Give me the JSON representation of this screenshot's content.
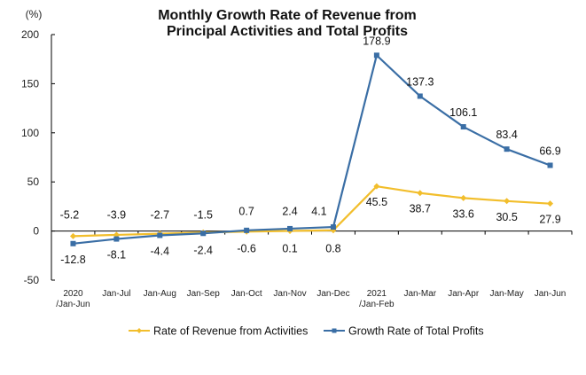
{
  "chart_data": {
    "type": "line",
    "title": [
      "Monthly Growth Rate of Revenue from",
      "Principal Activities  and Total Profits"
    ],
    "ylabel": "(%)",
    "xlabel": "",
    "ylim": [
      -50,
      200
    ],
    "yticks": [
      -50,
      0,
      50,
      100,
      150,
      200
    ],
    "grid": false,
    "legend_position": "bottom",
    "categories": [
      [
        "2020",
        "/Jan-Jun"
      ],
      [
        "Jan-Jul"
      ],
      [
        "Jan-Aug"
      ],
      [
        "Jan-Sep"
      ],
      [
        "Jan-Oct"
      ],
      [
        "Jan-Nov"
      ],
      [
        "Jan-Dec"
      ],
      [
        "2021",
        "/Jan-Feb"
      ],
      [
        "Jan-Mar"
      ],
      [
        "Jan-Apr"
      ],
      [
        "Jan-May"
      ],
      [
        "Jan-Jun"
      ]
    ],
    "series": [
      {
        "name": "Rate of Revenue from Activities",
        "color": "#F2BE2C",
        "marker": "diamond",
        "values": [
          -5.2,
          -3.9,
          -2.7,
          -1.5,
          -0.6,
          0.1,
          0.8,
          45.5,
          38.7,
          33.6,
          30.5,
          27.9
        ],
        "label_positions": [
          "above",
          "above",
          "above",
          "above",
          "below",
          "below",
          "below",
          "below",
          "below",
          "below",
          "below",
          "below"
        ]
      },
      {
        "name": "Growth Rate of Total Profits",
        "color": "#3A6EA5",
        "marker": "square",
        "values": [
          -12.8,
          -8.1,
          -4.4,
          -2.4,
          0.7,
          2.4,
          4.1,
          178.9,
          137.3,
          106.1,
          83.4,
          66.9
        ],
        "label_positions": [
          "below",
          "below",
          "below",
          "below",
          "above",
          "above",
          "above-left",
          "above",
          "above",
          "above",
          "above",
          "above"
        ]
      }
    ]
  }
}
